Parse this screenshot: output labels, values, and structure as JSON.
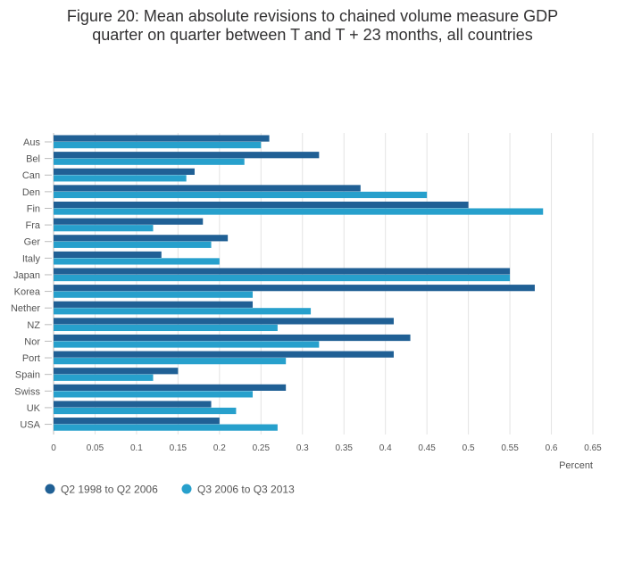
{
  "chart_data": {
    "type": "bar",
    "orientation": "horizontal",
    "title_lines": [
      "Figure 20: Mean absolute revisions to chained volume measure GDP",
      "quarter on quarter between T and T + 23 months, all countries"
    ],
    "xlabel": "Percent",
    "ylabel": "",
    "xlim": [
      0,
      0.65
    ],
    "xticks": [
      0,
      0.05,
      0.1,
      0.15,
      0.2,
      0.25,
      0.3,
      0.35,
      0.4,
      0.45,
      0.5,
      0.55,
      0.6,
      0.65
    ],
    "xtick_labels": [
      "0",
      "0.05",
      "0.1",
      "0.15",
      "0.2",
      "0.25",
      "0.3",
      "0.35",
      "0.4",
      "0.45",
      "0.5",
      "0.55",
      "0.6",
      "0.65"
    ],
    "grid": true,
    "legend_position": "bottom-left",
    "categories": [
      "Aus",
      "Bel",
      "Can",
      "Den",
      "Fin",
      "Fra",
      "Ger",
      "Italy",
      "Japan",
      "Korea",
      "Nether",
      "NZ",
      "Nor",
      "Port",
      "Spain",
      "Swiss",
      "UK",
      "USA"
    ],
    "series": [
      {
        "name": "Q2 1998 to Q2 2006",
        "color": "#206095",
        "values": [
          0.26,
          0.32,
          0.17,
          0.37,
          0.5,
          0.18,
          0.21,
          0.13,
          0.55,
          0.58,
          0.24,
          0.41,
          0.43,
          0.41,
          0.15,
          0.28,
          0.19,
          0.2
        ]
      },
      {
        "name": "Q3 2006 to Q3 2013",
        "color": "#27A0CC",
        "values": [
          0.25,
          0.23,
          0.16,
          0.45,
          0.59,
          0.12,
          0.19,
          0.2,
          0.55,
          0.24,
          0.31,
          0.27,
          0.32,
          0.28,
          0.12,
          0.24,
          0.22,
          0.27
        ]
      }
    ]
  }
}
